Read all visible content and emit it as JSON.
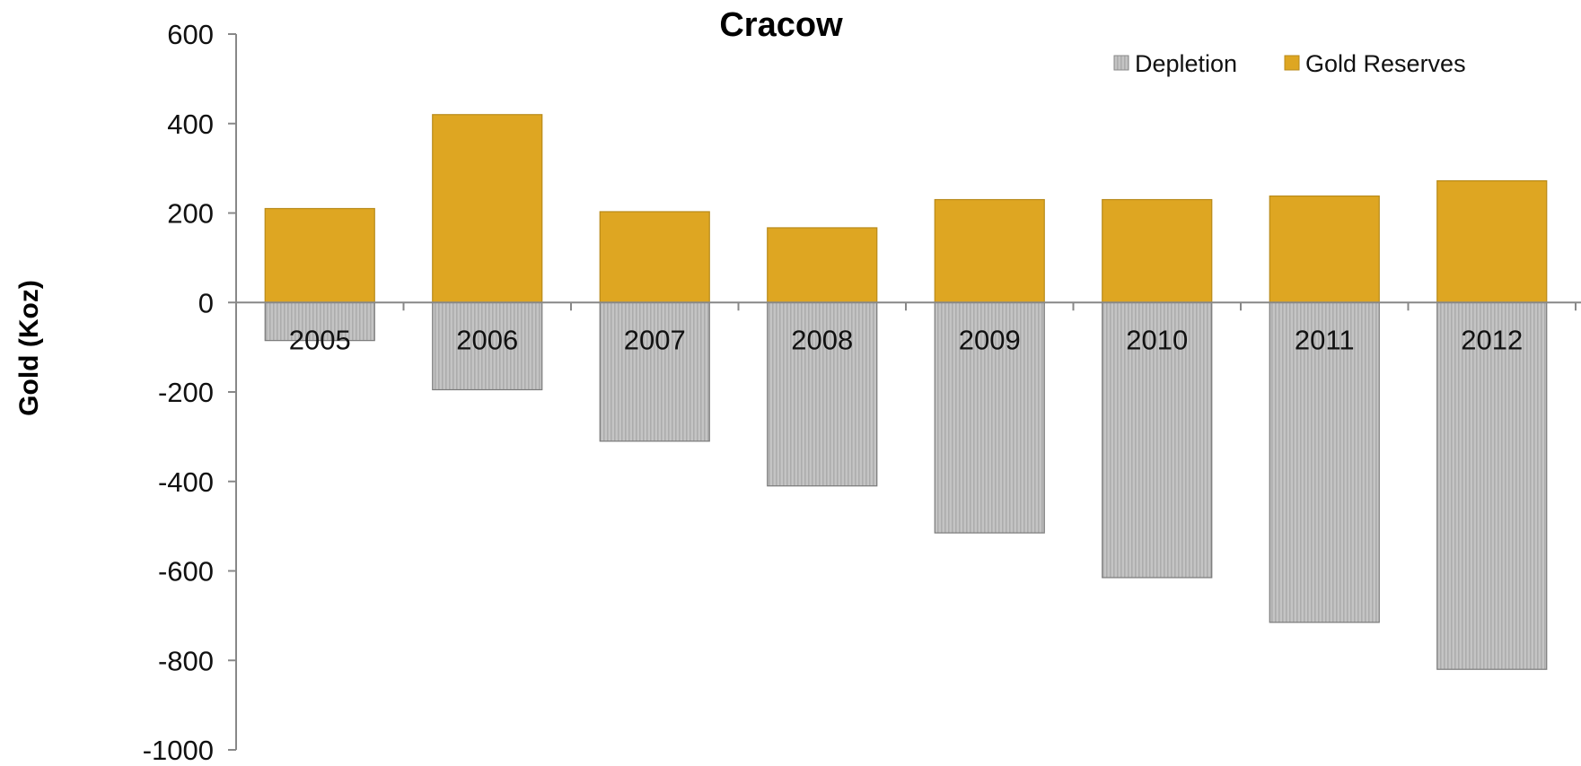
{
  "chart_data": {
    "type": "bar",
    "stacked": true,
    "title": "Cracow",
    "xlabel": "",
    "ylabel": "Gold (Koz)",
    "ylim": [
      -1000,
      600
    ],
    "yticks": [
      600,
      400,
      200,
      0,
      -200,
      -400,
      -600,
      -800,
      -1000
    ],
    "categories": [
      "2005",
      "2006",
      "2007",
      "2008",
      "2009",
      "2010",
      "2011",
      "2012"
    ],
    "series": [
      {
        "name": "Depletion",
        "color": "#bdbdbd",
        "values": [
          -85,
          -195,
          -310,
          -410,
          -515,
          -615,
          -715,
          -820
        ]
      },
      {
        "name": "Gold Reserves",
        "color": "#dea622",
        "values": [
          210,
          420,
          203,
          167,
          230,
          230,
          238,
          272
        ]
      }
    ],
    "legend_position": "top-right",
    "grid": false
  }
}
